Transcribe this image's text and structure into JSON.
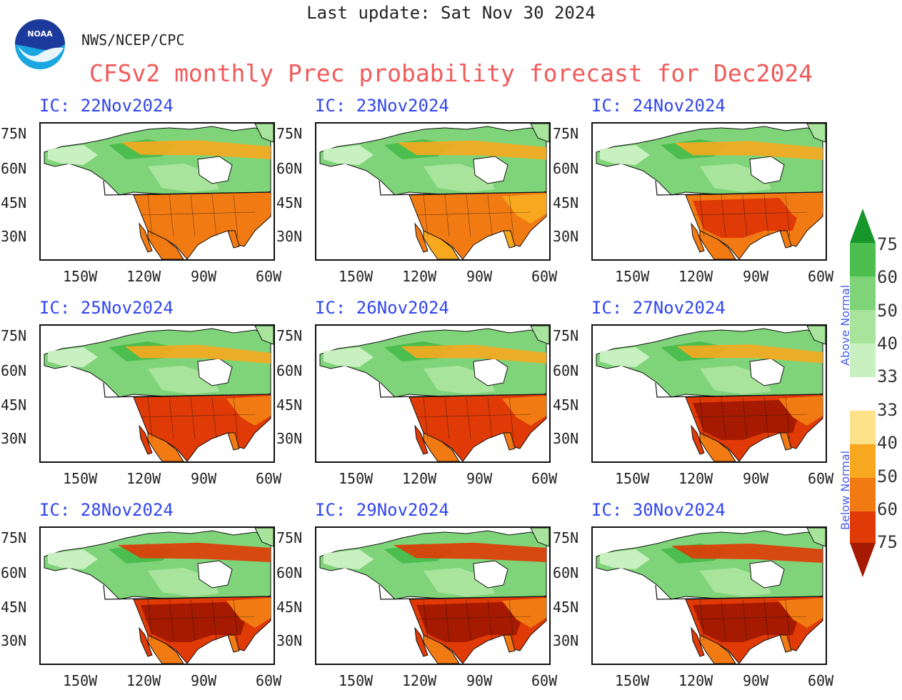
{
  "header": {
    "last_update": "Last update: Sat Nov 30 2024",
    "org": "NWS/NCEP/CPC",
    "title": "CFSv2 monthly Prec probability forecast for Dec2024",
    "logo_text": "NOAA"
  },
  "colors": {
    "title": "#f25a5a",
    "ic_label": "#3146ee",
    "side_label": "#4a5fe8",
    "below_75": "#a51a00",
    "below_60": "#e03a06",
    "below_50": "#f27a12",
    "below_40": "#f7a81e",
    "below_33": "#fde28a",
    "neutral": "#ffffff",
    "above_33": "#c8f0c0",
    "above_40": "#a8e49c",
    "above_50": "#7fd47a",
    "above_60": "#4cbd4f",
    "above_75": "#17962b"
  },
  "axes": {
    "lat_ticks": [
      "75N",
      "60N",
      "45N",
      "30N"
    ],
    "lon_ticks": [
      "150W",
      "120W",
      "90W",
      "60W"
    ]
  },
  "panels": [
    {
      "ic": "IC: 22Nov2024",
      "below_intensity": 0.35,
      "north_orange": 0.4
    },
    {
      "ic": "IC: 23Nov2024",
      "below_intensity": 0.2,
      "north_orange": 0.35
    },
    {
      "ic": "IC: 24Nov2024",
      "below_intensity": 0.5,
      "north_orange": 0.3
    },
    {
      "ic": "IC: 25Nov2024",
      "below_intensity": 0.6,
      "north_orange": 0.1
    },
    {
      "ic": "IC: 26Nov2024",
      "below_intensity": 0.7,
      "north_orange": 0.1
    },
    {
      "ic": "IC: 27Nov2024",
      "below_intensity": 0.75,
      "north_orange": 0.15
    },
    {
      "ic": "IC: 28Nov2024",
      "below_intensity": 0.95,
      "north_orange": 0.6
    },
    {
      "ic": "IC: 29Nov2024",
      "below_intensity": 0.9,
      "north_orange": 0.6
    },
    {
      "ic": "IC: 30Nov2024",
      "below_intensity": 0.85,
      "north_orange": 0.5
    }
  ],
  "legend": {
    "above_label": "Above Normal",
    "below_label": "Below Normal",
    "above_values": [
      "75",
      "60",
      "50",
      "40",
      "33"
    ],
    "below_values": [
      "33",
      "40",
      "50",
      "60",
      "75"
    ]
  }
}
